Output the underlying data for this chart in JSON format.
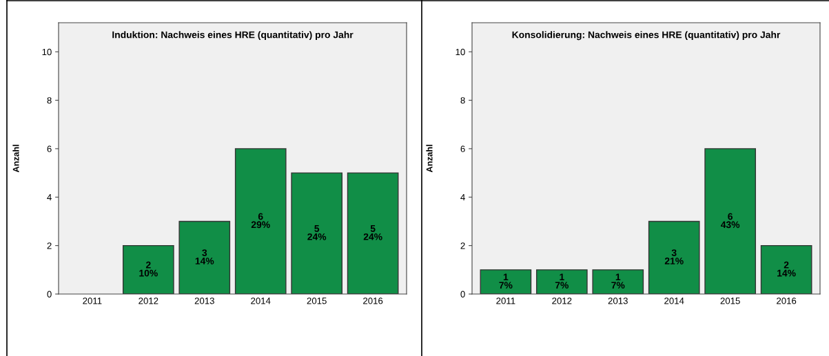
{
  "chart_data": [
    {
      "type": "bar",
      "title": "Induktion: Nachweis eines HRE (quantitativ) pro Jahr",
      "ylabel": "Anzahl",
      "categories": [
        "2011",
        "2012",
        "2013",
        "2014",
        "2015",
        "2016"
      ],
      "values": [
        0,
        2,
        3,
        6,
        5,
        5
      ],
      "color": "#118e47",
      "value_labels": [
        null,
        "2\n10%",
        "3\n14%",
        "6\n29%",
        "5\n24%",
        "5\n24%"
      ],
      "ylim": [
        0,
        11.2
      ],
      "yticks": [
        0,
        2,
        4,
        6,
        8,
        10
      ],
      "grid": false,
      "legend": false
    },
    {
      "type": "bar",
      "title": "Konsolidierung: Nachweis eines HRE (quantitativ) pro Jahr",
      "ylabel": "Anzahl",
      "categories": [
        "2011",
        "2012",
        "2013",
        "2014",
        "2015",
        "2016"
      ],
      "values": [
        1,
        1,
        1,
        3,
        6,
        2
      ],
      "color": "#118e47",
      "value_labels": [
        "1\n7%",
        "1\n7%",
        "1\n7%",
        "3\n21%",
        "6\n43%",
        "2\n14%"
      ],
      "ylim": [
        0,
        11.2
      ],
      "yticks": [
        0,
        2,
        4,
        6,
        8,
        10
      ],
      "grid": false,
      "legend": false
    }
  ]
}
